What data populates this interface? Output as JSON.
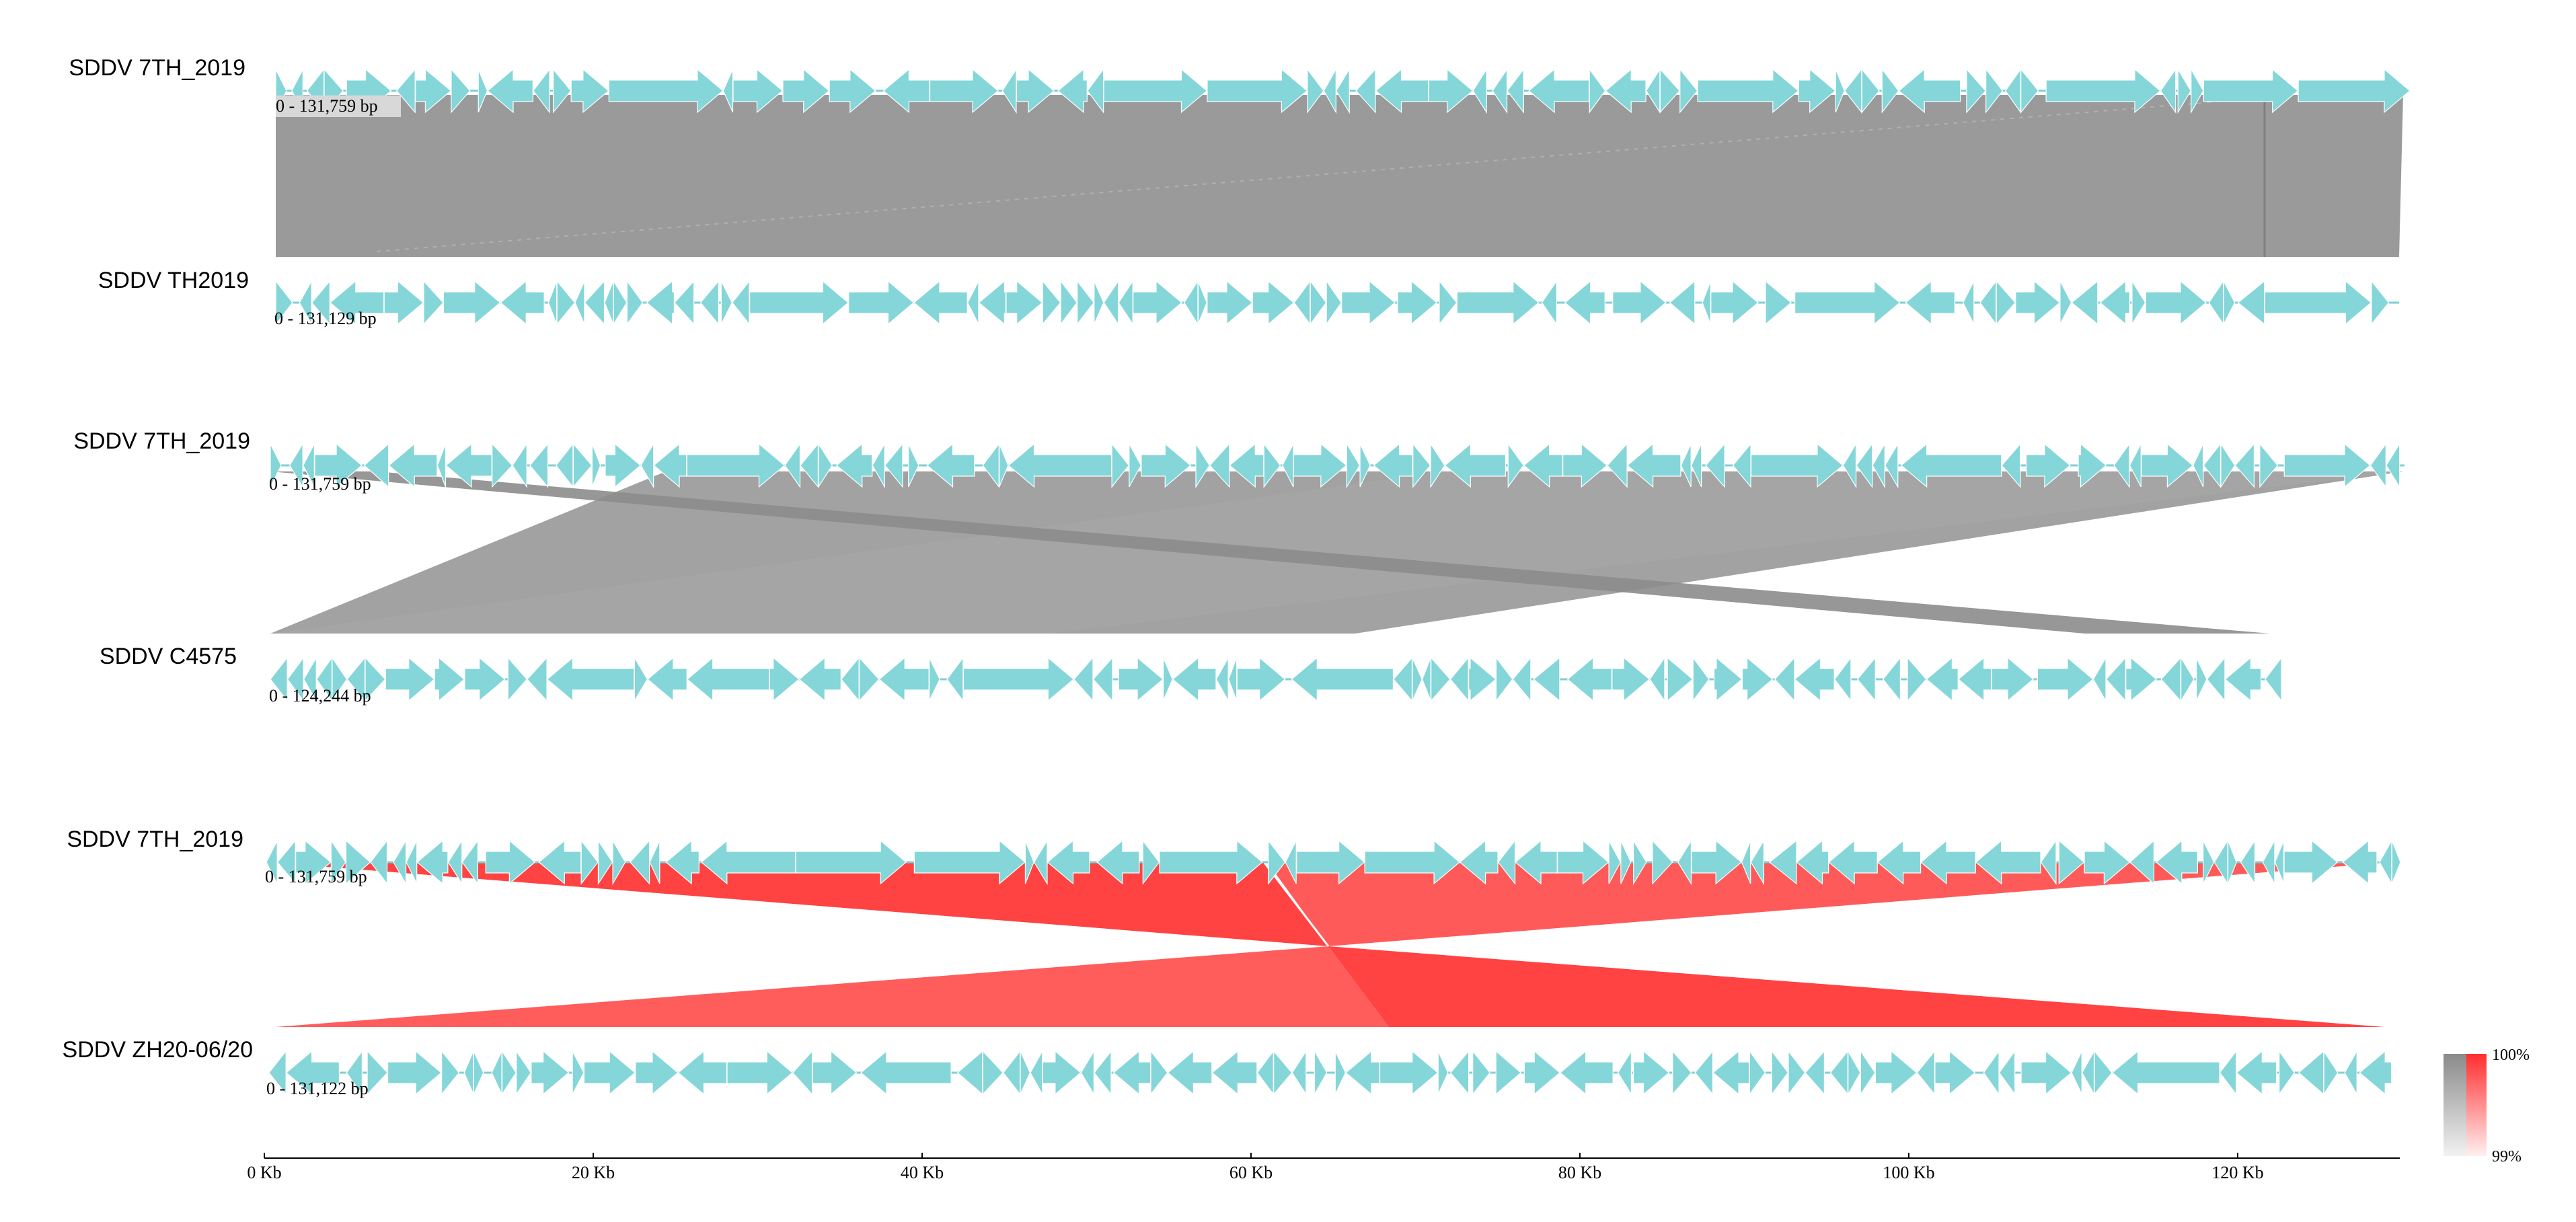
{
  "comparisons": [
    {
      "top": {
        "name": "SDDV 7TH_2019",
        "range": "0 - 131,759 bp",
        "length_bp": 131759
      },
      "bottom": {
        "name": "SDDV TH2019",
        "range": "0 - 131,129 bp",
        "length_bp": 131129
      },
      "similarity_style": "gray"
    },
    {
      "top": {
        "name": "SDDV 7TH_2019",
        "range": "0 - 131,759 bp",
        "length_bp": 131759
      },
      "bottom": {
        "name": "SDDV C4575",
        "range": "0 - 124,244 bp",
        "length_bp": 124244
      },
      "similarity_style": "gray"
    },
    {
      "top": {
        "name": "SDDV 7TH_2019",
        "range": "0 - 131,759 bp",
        "length_bp": 131759
      },
      "bottom": {
        "name": "SDDV ZH20-06/20",
        "range": "0 - 131,122 bp",
        "length_bp": 131122
      },
      "similarity_style": "red"
    }
  ],
  "axis": {
    "ticks": [
      "0 Kb",
      "20 Kb",
      "40 Kb",
      "60 Kb",
      "80 Kb",
      "100 Kb",
      "120 Kb"
    ],
    "tick_values_kb": [
      0,
      20,
      40,
      60,
      80,
      100,
      120
    ]
  },
  "legend": {
    "max_label": "100%",
    "min_label": "99%"
  },
  "colors": {
    "gene_arrow": "#85d6d8",
    "gray_match": "#a0a0a0",
    "gray_match_dark": "#8f8f8f",
    "red_match": "#ff4a4a",
    "red_match_light": "#ff6060",
    "backbone": "#7fcfd2"
  }
}
